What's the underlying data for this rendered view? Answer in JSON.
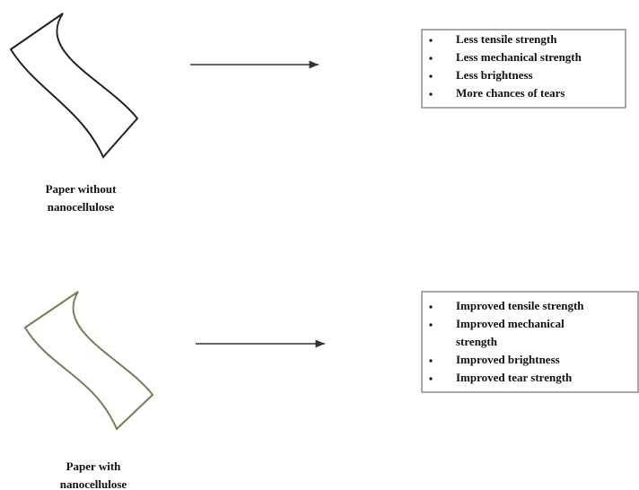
{
  "rows": [
    {
      "label": [
        "Paper without",
        "nanocellulose"
      ],
      "items": [
        [
          "Less tensile strength"
        ],
        [
          "Less mechanical strength"
        ],
        [
          "Less brightness"
        ],
        [
          "More chances of tears"
        ]
      ]
    },
    {
      "label": [
        "Paper with",
        "nanocellulose"
      ],
      "items": [
        [
          "Improved tensile strength"
        ],
        [
          "Improved mechanical",
          "strength"
        ],
        [
          "Improved brightness"
        ],
        [
          "Improved tear strength"
        ]
      ]
    }
  ]
}
